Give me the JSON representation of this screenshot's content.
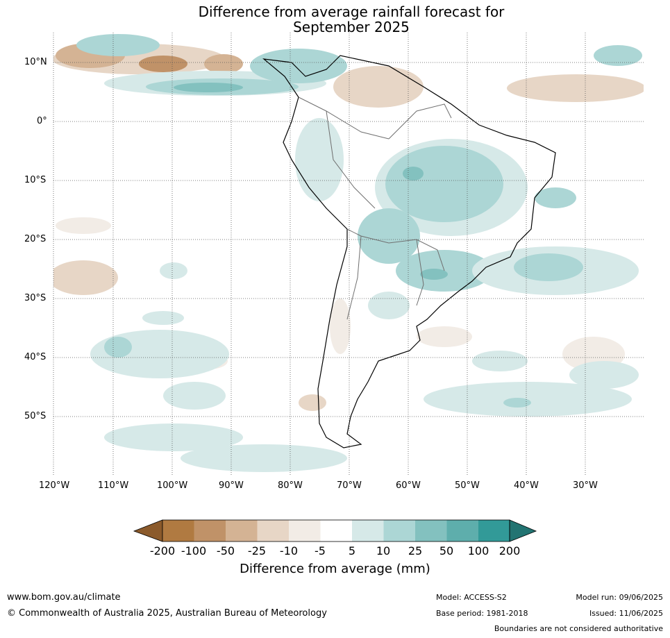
{
  "title_line1": "Difference from average rainfall forecast for",
  "title_line2": "September 2025",
  "lat_labels": [
    "10°N",
    "0°",
    "10°S",
    "20°S",
    "30°S",
    "40°S",
    "50°S"
  ],
  "lon_labels": [
    "120°W",
    "110°W",
    "100°W",
    "90°W",
    "80°W",
    "70°W",
    "60°W",
    "50°W",
    "40°W",
    "30°W"
  ],
  "legend": {
    "title": "Difference from average (mm)",
    "tick_labels": [
      "-200",
      "-100",
      "-50",
      "-25",
      "-10",
      "-5",
      "5",
      "10",
      "25",
      "50",
      "100",
      "200"
    ],
    "colors": [
      "#8b5a2b",
      "#b07a41",
      "#c09268",
      "#d4b394",
      "#e7d6c6",
      "#f2ece6",
      "#ffffff",
      "#d6e9e8",
      "#acd6d5",
      "#83c1bf",
      "#5eaeac",
      "#329a98",
      "#227472"
    ]
  },
  "footer": {
    "url": "www.bom.gov.au/climate",
    "copyright": "© Commonwealth of Australia 2025, Australian Bureau of Meteorology",
    "model": "Model: ACCESS-S2",
    "base_period": "Base period: 1981-2018",
    "model_run": "Model run: 09/06/2025",
    "issued": "Issued: 11/06/2025",
    "boundaries_note": "Boundaries are not considered authoritative"
  }
}
